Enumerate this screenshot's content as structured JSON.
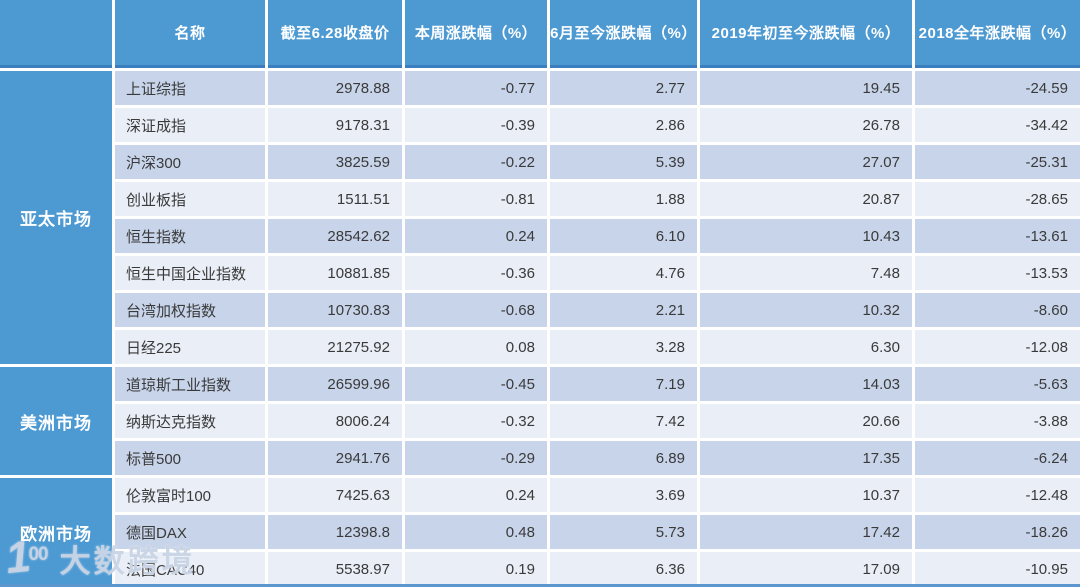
{
  "chart_data": {
    "type": "table",
    "columns": [
      "名称",
      "截至6.28收盘价",
      "本周涨跌幅（%）",
      "6月至今涨跌幅（%）",
      "2019年初至今涨跌幅（%）",
      "2018全年涨跌幅（%）"
    ],
    "groups": [
      {
        "label": "亚太市场",
        "rows": [
          {
            "name": "上证综指",
            "close": "2978.88",
            "week": "-0.77",
            "june": "2.77",
            "ytd2019": "19.45",
            "full2018": "-24.59"
          },
          {
            "name": "深证成指",
            "close": "9178.31",
            "week": "-0.39",
            "june": "2.86",
            "ytd2019": "26.78",
            "full2018": "-34.42"
          },
          {
            "name": "沪深300",
            "close": "3825.59",
            "week": "-0.22",
            "june": "5.39",
            "ytd2019": "27.07",
            "full2018": "-25.31"
          },
          {
            "name": "创业板指",
            "close": "1511.51",
            "week": "-0.81",
            "june": "1.88",
            "ytd2019": "20.87",
            "full2018": "-28.65"
          },
          {
            "name": "恒生指数",
            "close": "28542.62",
            "week": "0.24",
            "june": "6.10",
            "ytd2019": "10.43",
            "full2018": "-13.61"
          },
          {
            "name": "恒生中国企业指数",
            "close": "10881.85",
            "week": "-0.36",
            "june": "4.76",
            "ytd2019": "7.48",
            "full2018": "-13.53"
          },
          {
            "name": "台湾加权指数",
            "close": "10730.83",
            "week": "-0.68",
            "june": "2.21",
            "ytd2019": "10.32",
            "full2018": "-8.60"
          },
          {
            "name": "日经225",
            "close": "21275.92",
            "week": "0.08",
            "june": "3.28",
            "ytd2019": "6.30",
            "full2018": "-12.08"
          }
        ]
      },
      {
        "label": "美洲市场",
        "rows": [
          {
            "name": "道琼斯工业指数",
            "close": "26599.96",
            "week": "-0.45",
            "june": "7.19",
            "ytd2019": "14.03",
            "full2018": "-5.63"
          },
          {
            "name": "纳斯达克指数",
            "close": "8006.24",
            "week": "-0.32",
            "june": "7.42",
            "ytd2019": "20.66",
            "full2018": "-3.88"
          },
          {
            "name": "标普500",
            "close": "2941.76",
            "week": "-0.29",
            "june": "6.89",
            "ytd2019": "17.35",
            "full2018": "-6.24"
          }
        ]
      },
      {
        "label": "欧洲市场",
        "rows": [
          {
            "name": "伦敦富时100",
            "close": "7425.63",
            "week": "0.24",
            "june": "3.69",
            "ytd2019": "10.37",
            "full2018": "-12.48"
          },
          {
            "name": "德国DAX",
            "close": "12398.8",
            "week": "0.48",
            "june": "5.73",
            "ytd2019": "17.42",
            "full2018": "-18.26"
          },
          {
            "name": "法国CAC40",
            "close": "5538.97",
            "week": "0.19",
            "june": "6.36",
            "ytd2019": "17.09",
            "full2018": "-10.95"
          }
        ]
      }
    ]
  },
  "watermark": {
    "logo_one": "1",
    "logo_zeros": "00",
    "brand": "大数跨境"
  },
  "colors": {
    "header_blue": "#4d9ad3",
    "header_underline": "#3c7fbe",
    "band_dark": "#c7d4ea",
    "band_light": "#e9eef7",
    "bottom_rule": "#5b96ce"
  }
}
